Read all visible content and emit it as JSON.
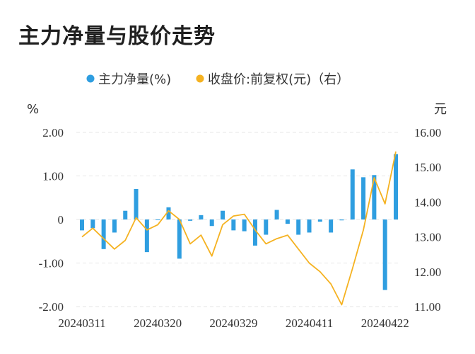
{
  "chart_data": {
    "type": "bar+line",
    "title": "主力净量与股价走势",
    "legend": [
      {
        "label": "主力净量(%)",
        "color": "#2f9ee0"
      },
      {
        "label": "收盘价:前复权(元)（右）",
        "color": "#f5b221"
      }
    ],
    "y_left": {
      "unit": "%",
      "ticks": [
        "2.00",
        "1.00",
        "0",
        "-1.00",
        "-2.00"
      ],
      "ylim": [
        -2,
        2
      ]
    },
    "y_right": {
      "unit": "元",
      "ticks": [
        "16.00",
        "15.00",
        "14.00",
        "13.00",
        "12.00",
        "11.00"
      ],
      "ylim": [
        11,
        16
      ]
    },
    "x_tick_labels": [
      "20240311",
      "20240320",
      "20240329",
      "20240411",
      "20240422"
    ],
    "x_tick_index": [
      0,
      7,
      14,
      21,
      28
    ],
    "series": [
      {
        "name": "主力净量(%)",
        "kind": "bar",
        "values": [
          -0.25,
          -0.2,
          -0.68,
          -0.3,
          0.2,
          0.7,
          -0.75,
          0.0,
          0.28,
          -0.9,
          -0.03,
          0.1,
          -0.15,
          0.2,
          -0.25,
          -0.27,
          -0.6,
          -0.35,
          0.22,
          -0.1,
          -0.35,
          -0.3,
          -0.05,
          -0.3,
          -0.02,
          1.15,
          0.97,
          1.02,
          -1.62,
          1.5
        ]
      },
      {
        "name": "收盘价:前复权(元)（右）",
        "kind": "line",
        "values": [
          13.0,
          13.25,
          12.95,
          12.65,
          12.9,
          13.55,
          13.2,
          13.35,
          13.75,
          13.5,
          12.8,
          13.05,
          12.45,
          13.35,
          13.6,
          13.65,
          13.2,
          12.8,
          12.95,
          13.05,
          12.65,
          12.25,
          12.0,
          11.65,
          11.05,
          12.1,
          13.2,
          14.7,
          13.95,
          15.45
        ]
      }
    ]
  }
}
